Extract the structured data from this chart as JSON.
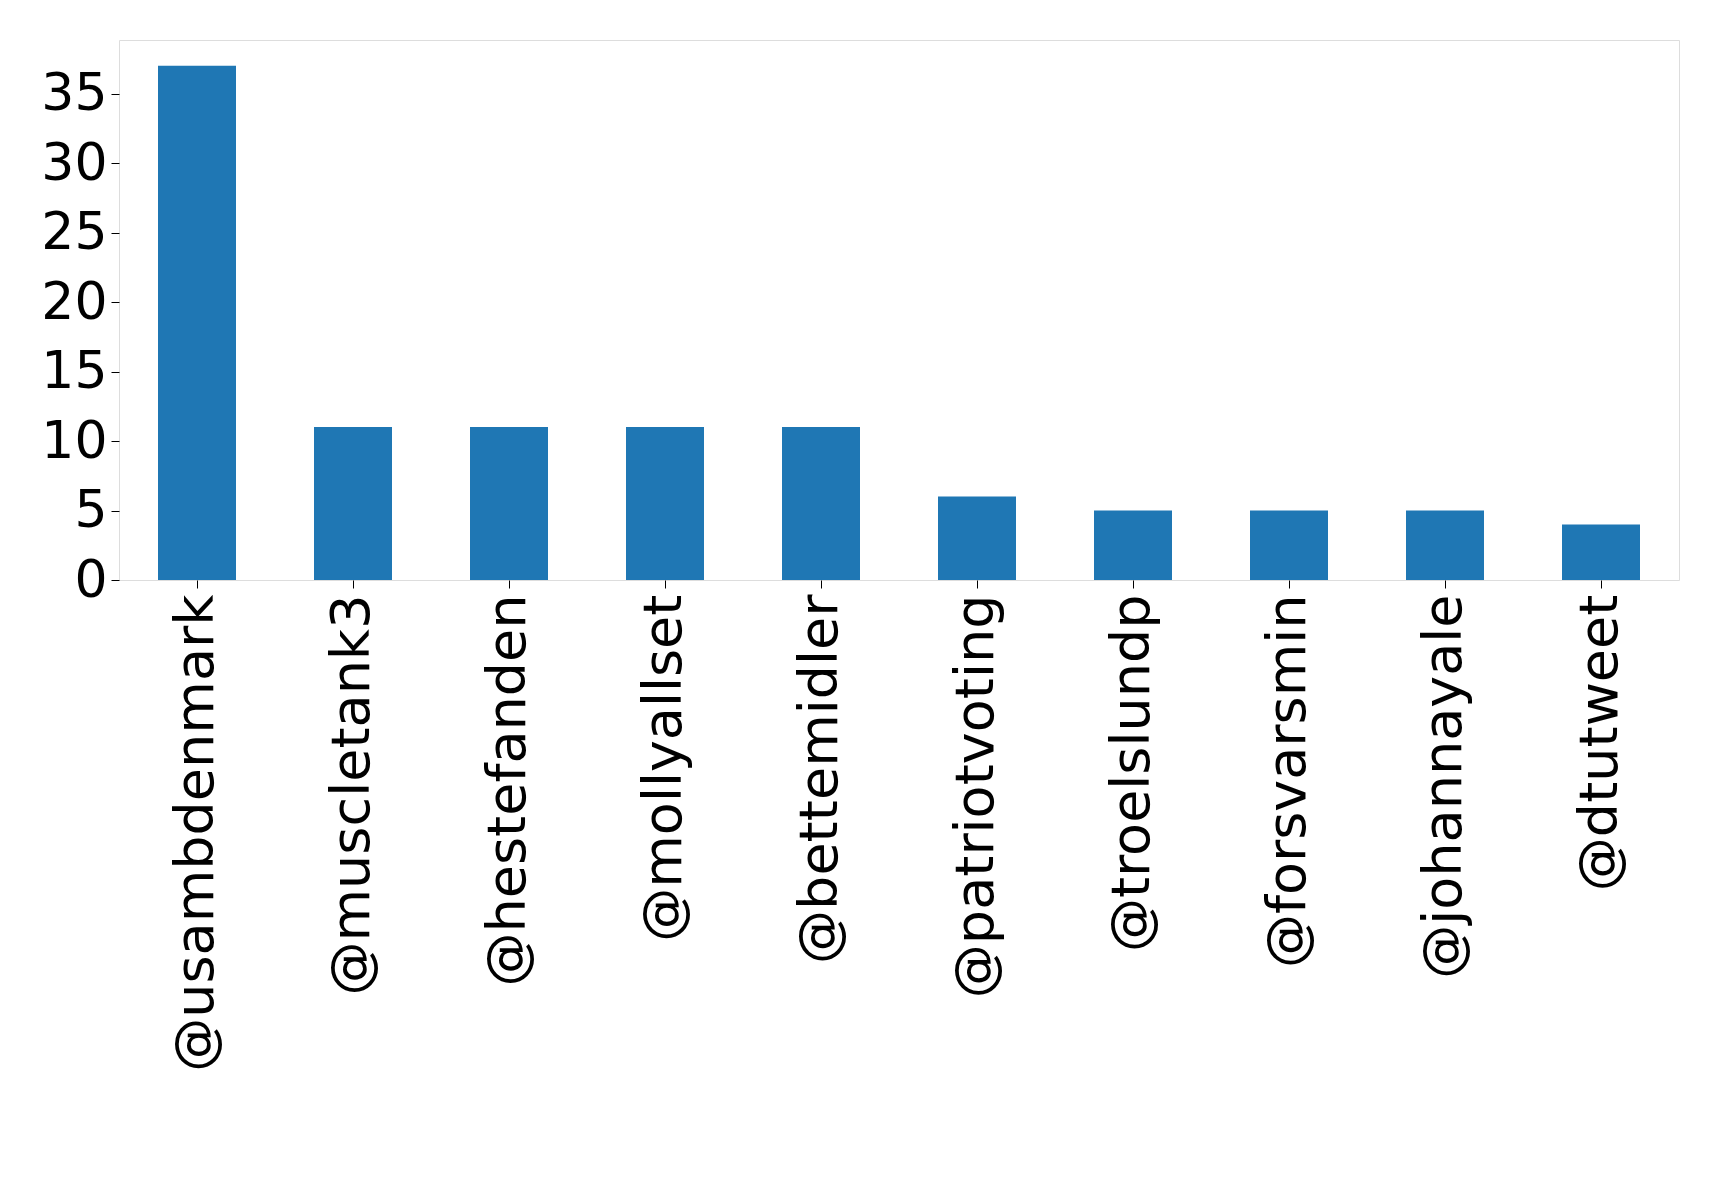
{
  "chart_data": {
    "type": "bar",
    "categories": [
      "@usambdenmark",
      "@muscletank3",
      "@hestefanden",
      "@mollyallset",
      "@bettemidler",
      "@patriotvoting",
      "@troelslundp",
      "@forsvarsmin",
      "@johannayale",
      "@dtutweet"
    ],
    "values": [
      37,
      11,
      11,
      11,
      11,
      6,
      5,
      5,
      5,
      4
    ],
    "color": "#1f77b4",
    "ylim": [
      0,
      38.85
    ],
    "yticks": [
      0,
      5,
      10,
      15,
      20,
      25,
      30,
      35
    ],
    "grid": false
  }
}
